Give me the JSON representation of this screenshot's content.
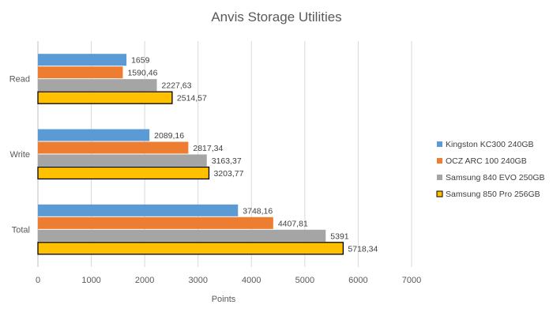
{
  "chart_data": {
    "type": "bar",
    "orientation": "horizontal",
    "title": "Anvis Storage Utilities",
    "xlabel": "Points",
    "ylabel": "",
    "categories": [
      "Read",
      "Write",
      "Total"
    ],
    "xlim": [
      0,
      7000
    ],
    "xticks": [
      0,
      1000,
      2000,
      3000,
      4000,
      5000,
      6000,
      7000
    ],
    "grid": "vertical",
    "legend_position": "right",
    "series": [
      {
        "name": "Kingston KC300 240GB",
        "color": "#5B9BD5",
        "values": [
          1659,
          2089.16,
          3748.16
        ],
        "labels": [
          "1659",
          "2089,16",
          "3748,16"
        ]
      },
      {
        "name": "OCZ ARC 100 240GB",
        "color": "#ED7D31",
        "values": [
          1590.46,
          2817.34,
          4407.81
        ],
        "labels": [
          "1590,46",
          "2817,34",
          "4407,81"
        ]
      },
      {
        "name": "Samsung 840 EVO 250GB",
        "color": "#A5A5A5",
        "values": [
          2227.63,
          3163.37,
          5391
        ],
        "labels": [
          "2227,63",
          "3163,37",
          "5391"
        ]
      },
      {
        "name": "Samsung 850 Pro 256GB",
        "color": "#FFC000",
        "border": "#000000",
        "values": [
          2514.57,
          3203.77,
          5718.34
        ],
        "labels": [
          "2514,57",
          "3203,77",
          "5718,34"
        ]
      }
    ]
  }
}
